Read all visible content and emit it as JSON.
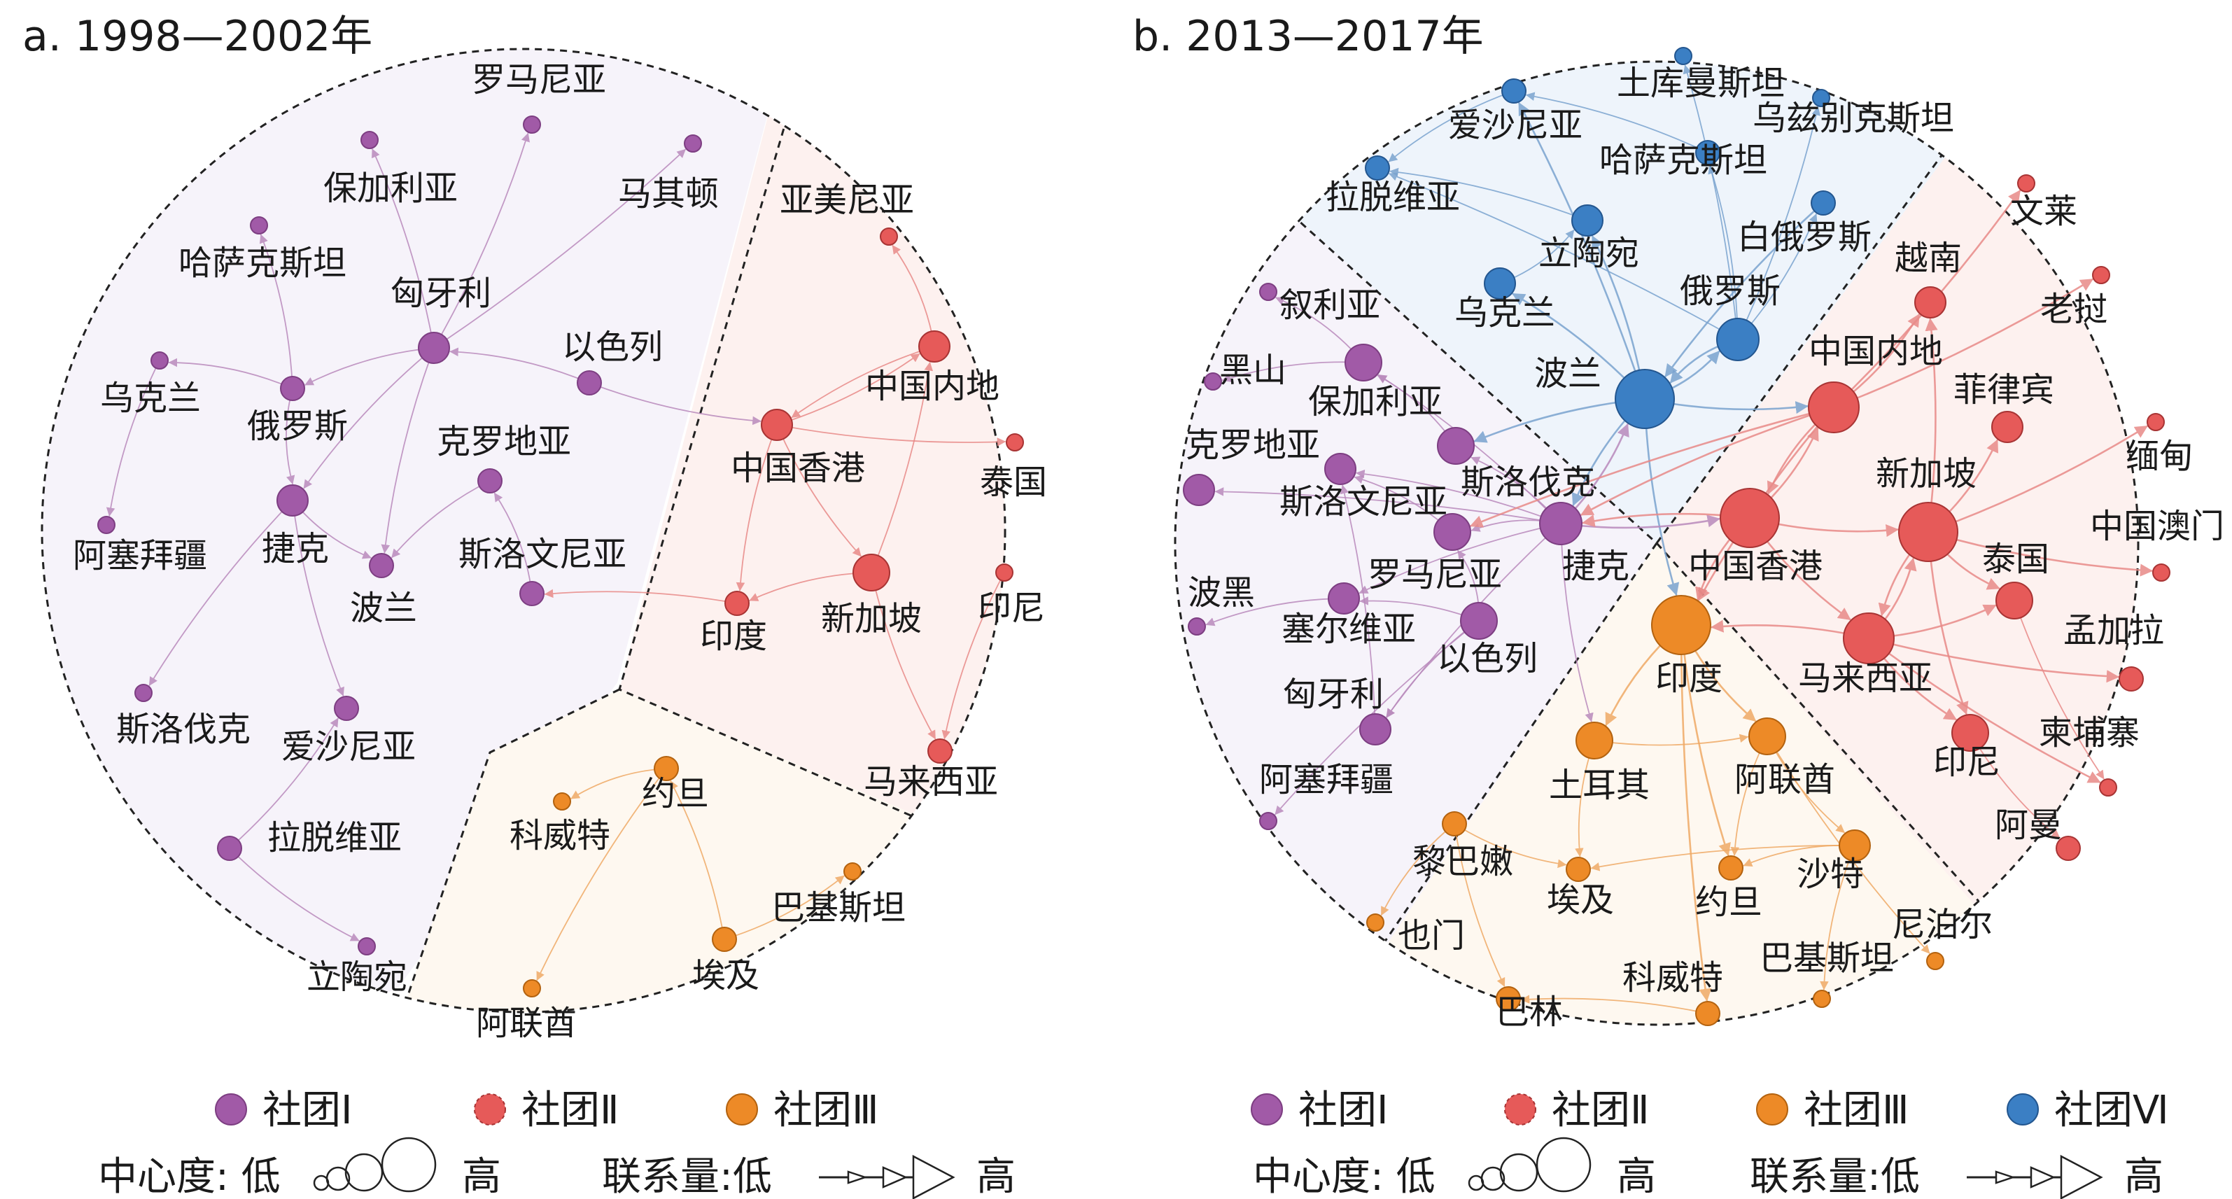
{
  "colors": {
    "c1": "#a15aa7",
    "c1_edge": "#b98abc",
    "c1_bg": "#f6f3fa",
    "c2": "#e65a59",
    "c2_edge": "#e88a88",
    "c2_bg": "#fdf1ef",
    "c3": "#ed8a27",
    "c3_edge": "#efaa66",
    "c3_bg": "#fef8f0",
    "c6": "#3b7fc4",
    "c6_edge": "#7aa3cf",
    "c6_bg": "#eef4fb",
    "hub_edge": "#8a8a8a"
  },
  "panels": [
    {
      "id": "a",
      "title": "a. 1998—2002年",
      "nodes": [
        {
          "id": "luomaniya",
          "label": "罗马尼亚",
          "c": 1,
          "s": 1
        },
        {
          "id": "baojialiya",
          "label": "保加利亚",
          "c": 1,
          "s": 1
        },
        {
          "id": "majidun",
          "label": "马其顿",
          "c": 1,
          "s": 1
        },
        {
          "id": "hasakesitan",
          "label": "哈萨克斯坦",
          "c": 1,
          "s": 1
        },
        {
          "id": "xiongyali",
          "label": "匈牙利",
          "c": 1,
          "s": 3
        },
        {
          "id": "yiselie",
          "label": "以色列",
          "c": 1,
          "s": 2
        },
        {
          "id": "wukelan",
          "label": "乌克兰",
          "c": 1,
          "s": 1
        },
        {
          "id": "eluosi",
          "label": "俄罗斯",
          "c": 1,
          "s": 2
        },
        {
          "id": "keluodiya",
          "label": "克罗地亚",
          "c": 1,
          "s": 2
        },
        {
          "id": "asaibaijiang",
          "label": "阿塞拜疆",
          "c": 1,
          "s": 1
        },
        {
          "id": "jieke",
          "label": "捷克",
          "c": 1,
          "s": 3
        },
        {
          "id": "bolan",
          "label": "波兰",
          "c": 1,
          "s": 2
        },
        {
          "id": "siluowenniya",
          "label": "斯洛文尼亚",
          "c": 1,
          "s": 2
        },
        {
          "id": "siluofake",
          "label": "斯洛伐克",
          "c": 1,
          "s": 1
        },
        {
          "id": "aishaniya",
          "label": "爱沙尼亚",
          "c": 1,
          "s": 2
        },
        {
          "id": "latuoweiya",
          "label": "拉脱维亚",
          "c": 1,
          "s": 2
        },
        {
          "id": "litaowan",
          "label": "立陶宛",
          "c": 1,
          "s": 1
        },
        {
          "id": "yameiniya",
          "label": "亚美尼亚",
          "c": 2,
          "s": 1
        },
        {
          "id": "zhongguoneidi",
          "label": "中国内地",
          "c": 2,
          "s": 3
        },
        {
          "id": "zhongguoxianggang",
          "label": "中国香港",
          "c": 2,
          "s": 3
        },
        {
          "id": "taiguo",
          "label": "泰国",
          "c": 2,
          "s": 1
        },
        {
          "id": "xinjiapo",
          "label": "新加坡",
          "c": 2,
          "s": 4
        },
        {
          "id": "yindu",
          "label": "印度",
          "c": 2,
          "s": 2
        },
        {
          "id": "yinni",
          "label": "印尼",
          "c": 2,
          "s": 1
        },
        {
          "id": "malaixiya",
          "label": "马来西亚",
          "c": 2,
          "s": 2
        },
        {
          "id": "yuedan",
          "label": "约旦",
          "c": 3,
          "s": 2
        },
        {
          "id": "keweite",
          "label": "科威特",
          "c": 3,
          "s": 1
        },
        {
          "id": "bajisitan",
          "label": "巴基斯坦",
          "c": 3,
          "s": 1
        },
        {
          "id": "aiji",
          "label": "埃及",
          "c": 3,
          "s": 2
        },
        {
          "id": "alianqiu",
          "label": "阿联酋",
          "c": 3,
          "s": 1
        }
      ]
    },
    {
      "id": "b",
      "title": "b. 2013—2017年",
      "nodes": [
        {
          "id": "tukuman",
          "label": "土库曼斯坦",
          "c": 6,
          "s": 1
        },
        {
          "id": "aishaniya",
          "label": "爱沙尼亚",
          "c": 6,
          "s": 2
        },
        {
          "id": "wuzibieke",
          "label": "乌兹别克斯坦",
          "c": 6,
          "s": 1
        },
        {
          "id": "hasakesitan",
          "label": "哈萨克斯坦",
          "c": 6,
          "s": 2
        },
        {
          "id": "latuoweiya",
          "label": "拉脱维亚",
          "c": 6,
          "s": 2
        },
        {
          "id": "baieluosi",
          "label": "白俄罗斯",
          "c": 6,
          "s": 2
        },
        {
          "id": "litaowan",
          "label": "立陶宛",
          "c": 6,
          "s": 3
        },
        {
          "id": "wukelan",
          "label": "乌克兰",
          "c": 6,
          "s": 3
        },
        {
          "id": "eluosi",
          "label": "俄罗斯",
          "c": 6,
          "s": 5
        },
        {
          "id": "bolan",
          "label": "波兰",
          "c": 6,
          "s": 7
        },
        {
          "id": "xuliya",
          "label": "叙利亚",
          "c": 1,
          "s": 1
        },
        {
          "id": "heishan",
          "label": "黑山",
          "c": 1,
          "s": 1
        },
        {
          "id": "baojialiya",
          "label": "保加利亚",
          "c": 1,
          "s": 4
        },
        {
          "id": "keluodiya",
          "label": "克罗地亚",
          "c": 1,
          "s": 3
        },
        {
          "id": "siluofake",
          "label": "斯洛伐克",
          "c": 1,
          "s": 4
        },
        {
          "id": "siluowenniya",
          "label": "斯洛文尼亚",
          "c": 1,
          "s": 3
        },
        {
          "id": "luomaniya",
          "label": "罗马尼亚",
          "c": 1,
          "s": 4
        },
        {
          "id": "jieke",
          "label": "捷克",
          "c": 1,
          "s": 5
        },
        {
          "id": "bohei",
          "label": "波黑",
          "c": 1,
          "s": 1
        },
        {
          "id": "saierweiya",
          "label": "塞尔维亚",
          "c": 1,
          "s": 3
        },
        {
          "id": "yiselie",
          "label": "以色列",
          "c": 1,
          "s": 4
        },
        {
          "id": "xiongyali",
          "label": "匈牙利",
          "c": 1,
          "s": 3
        },
        {
          "id": "asaibaijiang",
          "label": "阿塞拜疆",
          "c": 1,
          "s": 1
        },
        {
          "id": "wenlai",
          "label": "文莱",
          "c": 2,
          "s": 1
        },
        {
          "id": "yuenan",
          "label": "越南",
          "c": 2,
          "s": 3
        },
        {
          "id": "laowo",
          "label": "老挝",
          "c": 2,
          "s": 1
        },
        {
          "id": "zhongguoneidi",
          "label": "中国内地",
          "c": 2,
          "s": 6
        },
        {
          "id": "feilvbin",
          "label": "菲律宾",
          "c": 2,
          "s": 3
        },
        {
          "id": "miandian",
          "label": "缅甸",
          "c": 2,
          "s": 1
        },
        {
          "id": "xinjiapo",
          "label": "新加坡",
          "c": 2,
          "s": 7
        },
        {
          "id": "zhongguoxianggang",
          "label": "中国香港",
          "c": 2,
          "s": 7
        },
        {
          "id": "zhongguoaomen",
          "label": "中国澳门",
          "c": 2,
          "s": 1
        },
        {
          "id": "taiguo",
          "label": "泰国",
          "c": 2,
          "s": 4
        },
        {
          "id": "mengjiala",
          "label": "孟加拉",
          "c": 2,
          "s": 2
        },
        {
          "id": "malaixiya",
          "label": "马来西亚",
          "c": 2,
          "s": 6
        },
        {
          "id": "jianpuzhai",
          "label": "柬埔寨",
          "c": 2,
          "s": 1
        },
        {
          "id": "yinni",
          "label": "印尼",
          "c": 2,
          "s": 4
        },
        {
          "id": "aman",
          "label": "阿曼",
          "c": 2,
          "s": 2
        },
        {
          "id": "yindu",
          "label": "印度",
          "c": 3,
          "s": 7
        },
        {
          "id": "tuerqi",
          "label": "土耳其",
          "c": 3,
          "s": 4
        },
        {
          "id": "alianqiu",
          "label": "阿联酋",
          "c": 3,
          "s": 4
        },
        {
          "id": "libanen",
          "label": "黎巴嫩",
          "c": 3,
          "s": 2
        },
        {
          "id": "aiji",
          "label": "埃及",
          "c": 3,
          "s": 2
        },
        {
          "id": "yuedan",
          "label": "约旦",
          "c": 3,
          "s": 2
        },
        {
          "id": "shate",
          "label": "沙特",
          "c": 3,
          "s": 3
        },
        {
          "id": "yemen",
          "label": "也门",
          "c": 3,
          "s": 1
        },
        {
          "id": "niboer",
          "label": "尼泊尔",
          "c": 3,
          "s": 1
        },
        {
          "id": "bajisitan",
          "label": "巴基斯坦",
          "c": 3,
          "s": 1
        },
        {
          "id": "keweite",
          "label": "科威特",
          "c": 3,
          "s": 2
        },
        {
          "id": "balin",
          "label": "巴林",
          "c": 3,
          "s": 2
        }
      ]
    }
  ],
  "legend_a": {
    "communities": [
      {
        "label": "社团Ⅰ",
        "c": 1
      },
      {
        "label": "社团Ⅱ",
        "c": 2
      },
      {
        "label": "社团Ⅲ",
        "c": 3
      }
    ],
    "centrality_label": "中心度: 低",
    "high_label": "高",
    "flow_label": "联系量:低",
    "flow_high_label": "高"
  },
  "legend_b": {
    "communities": [
      {
        "label": "社团Ⅰ",
        "c": 1
      },
      {
        "label": "社团Ⅱ",
        "c": 2
      },
      {
        "label": "社团Ⅲ",
        "c": 3
      },
      {
        "label": "社团Ⅵ",
        "c": 6
      }
    ],
    "centrality_label": "中心度: 低",
    "high_label": "高",
    "flow_label": "联系量:低",
    "flow_high_label": "高"
  }
}
